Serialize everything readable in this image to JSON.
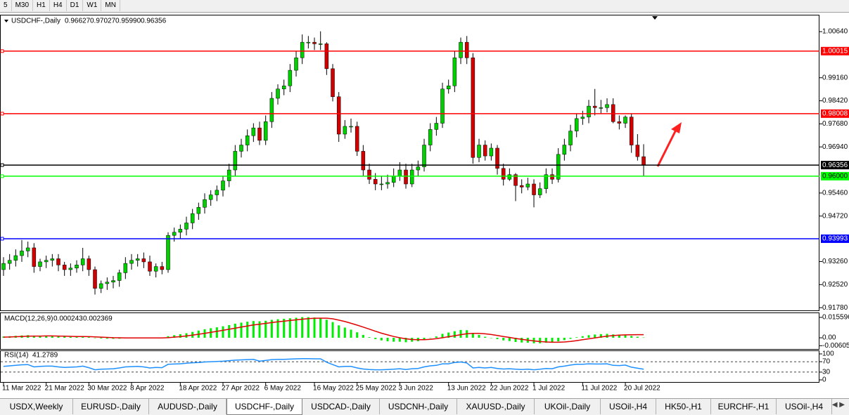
{
  "toolbar": [
    "5",
    "M30",
    "H1",
    "H4",
    "D1",
    "W1",
    "MN"
  ],
  "tabs": [
    "USDX,Weekly",
    "EURUSD-,Daily",
    "AUDUSD-,Daily",
    "USDCHF-,Daily",
    "USDCAD-,Daily",
    "USDCNH-,Daily",
    "XAUUSD-,Daily",
    "UKOil-,Daily",
    "USOil-,H4",
    "HK50-,H1",
    "EURCHF-,H1",
    "USOil-,H4"
  ],
  "chart_data": [
    {
      "type": "candlestick",
      "title": "USDCHF-,Daily",
      "ohlc": [
        "0.96627",
        "0.97027",
        "0.95990",
        "0.96356"
      ],
      "up_color": "#00d000",
      "down_color": "#d00000",
      "categories": [
        "11 Mar 2022",
        null,
        null,
        null,
        null,
        null,
        null,
        "21 Mar 2022",
        null,
        null,
        null,
        null,
        null,
        null,
        "30 Mar 2022",
        null,
        null,
        null,
        null,
        null,
        null,
        "8 Apr 2022",
        null,
        null,
        null,
        null,
        null,
        null,
        null,
        "18 Apr 2022",
        null,
        null,
        null,
        null,
        null,
        null,
        "27 Apr 2022",
        null,
        null,
        null,
        null,
        null,
        null,
        "6 May 2022",
        null,
        null,
        null,
        null,
        null,
        null,
        null,
        "16 May 2022",
        null,
        null,
        null,
        null,
        null,
        null,
        "25 May 2022",
        null,
        null,
        null,
        null,
        null,
        null,
        "3 Jun 2022",
        null,
        null,
        null,
        null,
        null,
        null,
        null,
        "13 Jun 2022",
        null,
        null,
        null,
        null,
        null,
        null,
        "22 Jun 2022",
        null,
        null,
        null,
        null,
        null,
        null,
        "1 Jul 2022",
        null,
        null,
        null,
        null,
        null,
        null,
        null,
        "11 Jul 2022",
        null,
        null,
        null,
        null,
        null,
        null,
        "20 Jul 2022",
        null,
        null,
        null
      ],
      "open": [
        0.93,
        0.932,
        0.933,
        0.9345,
        0.936,
        0.937,
        0.931,
        0.9325,
        0.933,
        0.9335,
        0.9315,
        0.93,
        0.9305,
        0.9315,
        0.9335,
        0.93,
        0.924,
        0.9255,
        0.926,
        0.9265,
        0.929,
        0.932,
        0.933,
        0.9335,
        0.9325,
        0.9295,
        0.931,
        0.93,
        0.941,
        0.942,
        0.943,
        0.945,
        0.948,
        0.95,
        0.9525,
        0.954,
        0.9555,
        0.9585,
        0.962,
        0.968,
        0.97,
        0.973,
        0.9755,
        0.9715,
        0.9775,
        0.985,
        0.988,
        0.989,
        0.994,
        0.998,
        1.003,
        1.003,
        1.0025,
        1.0025,
        0.9945,
        0.9855,
        0.9735,
        0.976,
        0.976,
        0.968,
        0.962,
        0.959,
        0.9575,
        0.9575,
        0.958,
        0.96,
        0.962,
        0.9575,
        0.962,
        0.963,
        0.97,
        0.975,
        0.977,
        0.988,
        0.989,
        0.998,
        1.003,
        0.998,
        0.966,
        0.97,
        0.9665,
        0.969,
        0.9625,
        0.959,
        0.9605,
        0.957,
        0.9565,
        0.9575,
        0.954,
        0.956,
        0.9605,
        0.959,
        0.967,
        0.97,
        0.9745,
        0.9785,
        0.979,
        0.9825,
        0.982,
        0.982,
        0.983,
        0.9775,
        0.977,
        0.979,
        0.97,
        0.96627
      ],
      "high": [
        0.934,
        0.935,
        0.9365,
        0.9395,
        0.939,
        0.9385,
        0.9335,
        0.9345,
        0.935,
        0.935,
        0.9325,
        0.932,
        0.933,
        0.937,
        0.9345,
        0.931,
        0.9265,
        0.9275,
        0.928,
        0.93,
        0.934,
        0.935,
        0.935,
        0.9355,
        0.9345,
        0.932,
        0.9325,
        0.942,
        0.9435,
        0.9445,
        0.947,
        0.9495,
        0.9515,
        0.9545,
        0.9555,
        0.957,
        0.96,
        0.964,
        0.97,
        0.972,
        0.975,
        0.977,
        0.9775,
        0.9795,
        0.987,
        0.9895,
        0.991,
        0.996,
        1.0,
        1.0055,
        1.005,
        1.0045,
        1.0065,
        1.003,
        0.996,
        0.987,
        0.978,
        0.9785,
        0.9775,
        0.97,
        0.964,
        0.961,
        0.96,
        0.9605,
        0.9625,
        0.9645,
        0.964,
        0.964,
        0.965,
        0.972,
        0.977,
        0.979,
        0.99,
        0.991,
        1.0,
        1.0045,
        1.005,
        0.9995,
        0.972,
        0.9715,
        0.9705,
        0.97,
        0.964,
        0.9625,
        0.961,
        0.959,
        0.9595,
        0.959,
        0.958,
        0.9625,
        0.9625,
        0.969,
        0.972,
        0.9765,
        0.98,
        0.981,
        0.9845,
        0.988,
        0.9845,
        0.985,
        0.985,
        0.9795,
        0.9795,
        0.98,
        0.9735,
        0.97027
      ],
      "low": [
        0.928,
        0.93,
        0.931,
        0.9325,
        0.934,
        0.929,
        0.9295,
        0.9305,
        0.931,
        0.9295,
        0.928,
        0.928,
        0.929,
        0.9295,
        0.928,
        0.922,
        0.9225,
        0.9235,
        0.924,
        0.9245,
        0.927,
        0.93,
        0.931,
        0.9305,
        0.928,
        0.9275,
        0.9285,
        0.929,
        0.939,
        0.94,
        0.941,
        0.943,
        0.946,
        0.948,
        0.9505,
        0.952,
        0.9535,
        0.9565,
        0.96,
        0.966,
        0.968,
        0.971,
        0.97,
        0.97,
        0.9755,
        0.983,
        0.986,
        0.987,
        0.992,
        0.996,
        1.001,
        1.0005,
        1.0005,
        0.9925,
        0.984,
        0.971,
        0.972,
        0.974,
        0.9665,
        0.96,
        0.9575,
        0.9555,
        0.9555,
        0.956,
        0.9565,
        0.9585,
        0.956,
        0.9565,
        0.96,
        0.9615,
        0.968,
        0.973,
        0.9755,
        0.9865,
        0.987,
        0.996,
        0.996,
        0.964,
        0.9645,
        0.965,
        0.965,
        0.9605,
        0.957,
        0.9585,
        0.952,
        0.9545,
        0.9555,
        0.95,
        0.953,
        0.9545,
        0.9575,
        0.958,
        0.965,
        0.968,
        0.9725,
        0.9765,
        0.977,
        0.9795,
        0.98,
        0.9805,
        0.977,
        0.975,
        0.9755,
        0.9675,
        0.965,
        0.9599
      ],
      "close": [
        0.932,
        0.933,
        0.9345,
        0.936,
        0.937,
        0.931,
        0.9325,
        0.933,
        0.9335,
        0.9315,
        0.93,
        0.9305,
        0.9315,
        0.9335,
        0.93,
        0.924,
        0.9255,
        0.926,
        0.9265,
        0.929,
        0.932,
        0.933,
        0.9335,
        0.9325,
        0.9295,
        0.931,
        0.93,
        0.941,
        0.942,
        0.943,
        0.945,
        0.948,
        0.95,
        0.9525,
        0.954,
        0.9555,
        0.9585,
        0.962,
        0.968,
        0.97,
        0.973,
        0.9755,
        0.9715,
        0.9775,
        0.985,
        0.988,
        0.989,
        0.994,
        0.998,
        1.003,
        1.003,
        1.0025,
        1.0025,
        0.9945,
        0.9855,
        0.9735,
        0.976,
        0.976,
        0.968,
        0.962,
        0.959,
        0.9575,
        0.9575,
        0.958,
        0.96,
        0.962,
        0.9575,
        0.962,
        0.963,
        0.97,
        0.975,
        0.977,
        0.988,
        0.989,
        0.998,
        1.003,
        0.998,
        0.966,
        0.97,
        0.9665,
        0.969,
        0.9625,
        0.959,
        0.9605,
        0.957,
        0.9565,
        0.9575,
        0.954,
        0.956,
        0.9605,
        0.959,
        0.967,
        0.97,
        0.9745,
        0.9785,
        0.979,
        0.9825,
        0.982,
        0.982,
        0.983,
        0.9775,
        0.977,
        0.979,
        0.97,
        0.96627,
        0.96356
      ],
      "ylim": [
        0.9167,
        1.0116
      ],
      "yticks": [
        {
          "value": 1.0064,
          "label": "1.00640"
        },
        {
          "value": 0.9916,
          "label": "0.99160"
        },
        {
          "value": 0.9842,
          "label": "0.98420"
        },
        {
          "value": 0.9768,
          "label": "0.97680"
        },
        {
          "value": 0.9694,
          "label": "0.96940"
        },
        {
          "value": 0.9546,
          "label": "0.95460"
        },
        {
          "value": 0.9472,
          "label": "0.94720"
        },
        {
          "value": 0.9326,
          "label": "0.93260"
        },
        {
          "value": 0.9252,
          "label": "0.92520"
        },
        {
          "value": 0.9178,
          "label": "0.91780"
        }
      ],
      "levels": [
        {
          "value": 1.00015,
          "color": "#ff0000"
        },
        {
          "value": 0.98008,
          "color": "#ff0000"
        },
        {
          "value": 0.96356,
          "color": "#000000"
        },
        {
          "value": 0.96,
          "label": "0.96000",
          "color": "#00ff00"
        },
        {
          "value": 0.93993,
          "color": "#0000ff"
        }
      ]
    },
    {
      "type": "macd",
      "title": "MACD(12,26,9)",
      "histogram": {
        "color": "#00ee00",
        "values": [
          0.001,
          0.0012,
          0.0015,
          0.0018,
          0.002,
          0.0016,
          0.0015,
          0.0014,
          0.0013,
          0.001,
          0.0008,
          0.0007,
          0.0007,
          0.0008,
          0.0005,
          -0.0002,
          -0.0005,
          -0.0007,
          -0.0008,
          -0.0007,
          -0.0004,
          -0.0002,
          0.0,
          0.0001,
          -0.0001,
          0.0,
          0.0,
          0.0012,
          0.002,
          0.0027,
          0.0035,
          0.0045,
          0.0055,
          0.0065,
          0.0073,
          0.008,
          0.0088,
          0.0097,
          0.0108,
          0.0116,
          0.0123,
          0.0128,
          0.0126,
          0.013,
          0.0137,
          0.0142,
          0.0145,
          0.0149,
          0.0153,
          0.0158,
          0.0158,
          0.0155,
          0.015,
          0.0138,
          0.012,
          0.0095,
          0.0078,
          0.0062,
          0.0042,
          0.0022,
          0.0005,
          -0.001,
          -0.002,
          -0.0027,
          -0.003,
          -0.003,
          -0.0034,
          -0.003,
          -0.0026,
          -0.0015,
          -0.0002,
          0.001,
          0.003,
          0.004,
          0.005,
          0.006,
          0.0058,
          0.0035,
          0.0022,
          0.0008,
          0.0,
          -0.001,
          -0.002,
          -0.0025,
          -0.0032,
          -0.0036,
          -0.0038,
          -0.0042,
          -0.0042,
          -0.0038,
          -0.0036,
          -0.0027,
          -0.0018,
          -0.0008,
          0.0004,
          0.0012,
          0.002,
          0.0025,
          0.0028,
          0.003,
          0.0026,
          0.0023,
          0.0022,
          0.0014,
          0.0008,
          0.000243
        ]
      },
      "signal": {
        "color": "#e00000",
        "values": [
          0.0005,
          0.0006,
          0.0008,
          0.001,
          0.0012,
          0.0013,
          0.0013,
          0.0014,
          0.0014,
          0.0013,
          0.0012,
          0.0011,
          0.001,
          0.001,
          0.0009,
          0.0007,
          0.0005,
          0.0003,
          0.0001,
          0.0,
          -0.0001,
          -0.0001,
          -0.0001,
          -0.0001,
          -0.0001,
          -0.0001,
          -0.0001,
          0.0001,
          0.0005,
          0.0009,
          0.0014,
          0.002,
          0.0027,
          0.0034,
          0.0042,
          0.0049,
          0.0057,
          0.0065,
          0.0073,
          0.0082,
          0.009,
          0.0098,
          0.0104,
          0.011,
          0.0116,
          0.0122,
          0.0127,
          0.0132,
          0.0137,
          0.0142,
          0.0146,
          0.0149,
          0.015,
          0.015,
          0.0145,
          0.0135,
          0.0124,
          0.0111,
          0.0097,
          0.0082,
          0.0066,
          0.005,
          0.0035,
          0.0022,
          0.001,
          0.0,
          -0.0008,
          -0.0013,
          -0.0015,
          -0.0015,
          -0.0012,
          -0.0007,
          0.0,
          0.0008,
          0.0016,
          0.0024,
          0.0031,
          0.0034,
          0.0034,
          0.003,
          0.0025,
          0.0018,
          0.001,
          0.0003,
          -0.0005,
          -0.0012,
          -0.0018,
          -0.0024,
          -0.0029,
          -0.0032,
          -0.0034,
          -0.0034,
          -0.0032,
          -0.0028,
          -0.0022,
          -0.0015,
          -0.0008,
          -0.0001,
          0.0006,
          0.0012,
          0.0017,
          0.002,
          0.0022,
          0.0023,
          0.0024,
          0.002369
        ]
      },
      "ylim": [
        -0.0091,
        0.0188
      ],
      "yticks": [
        0.015596,
        {
          "value": 0,
          "label": "0.00"
        },
        -0.006055
      ]
    },
    {
      "type": "line",
      "title": "RSI(14)",
      "color": "#1e90ff",
      "grid": true,
      "values": [
        52,
        54,
        56,
        58,
        59,
        50,
        52,
        53,
        53,
        50,
        48,
        49,
        50,
        53,
        47,
        39,
        41,
        42,
        43,
        46,
        50,
        51,
        52,
        50,
        46,
        48,
        47,
        60,
        61,
        62,
        64,
        66,
        67,
        69,
        70,
        71,
        72,
        74,
        76,
        77,
        78,
        79,
        72,
        75,
        78,
        79,
        79,
        80,
        81,
        82,
        82,
        81,
        81,
        68,
        59,
        50,
        52,
        52,
        46,
        42,
        40,
        39,
        39,
        40,
        41,
        43,
        40,
        43,
        44,
        50,
        54,
        56,
        62,
        62,
        67,
        69,
        65,
        46,
        48,
        46,
        48,
        44,
        42,
        43,
        41,
        40,
        41,
        39,
        41,
        44,
        43,
        50,
        53,
        57,
        60,
        60,
        62,
        61,
        61,
        62,
        56,
        55,
        57,
        49,
        45,
        41.2789
      ],
      "ylim": [
        0,
        100
      ],
      "yticks": [
        100,
        70,
        30,
        0
      ]
    }
  ]
}
